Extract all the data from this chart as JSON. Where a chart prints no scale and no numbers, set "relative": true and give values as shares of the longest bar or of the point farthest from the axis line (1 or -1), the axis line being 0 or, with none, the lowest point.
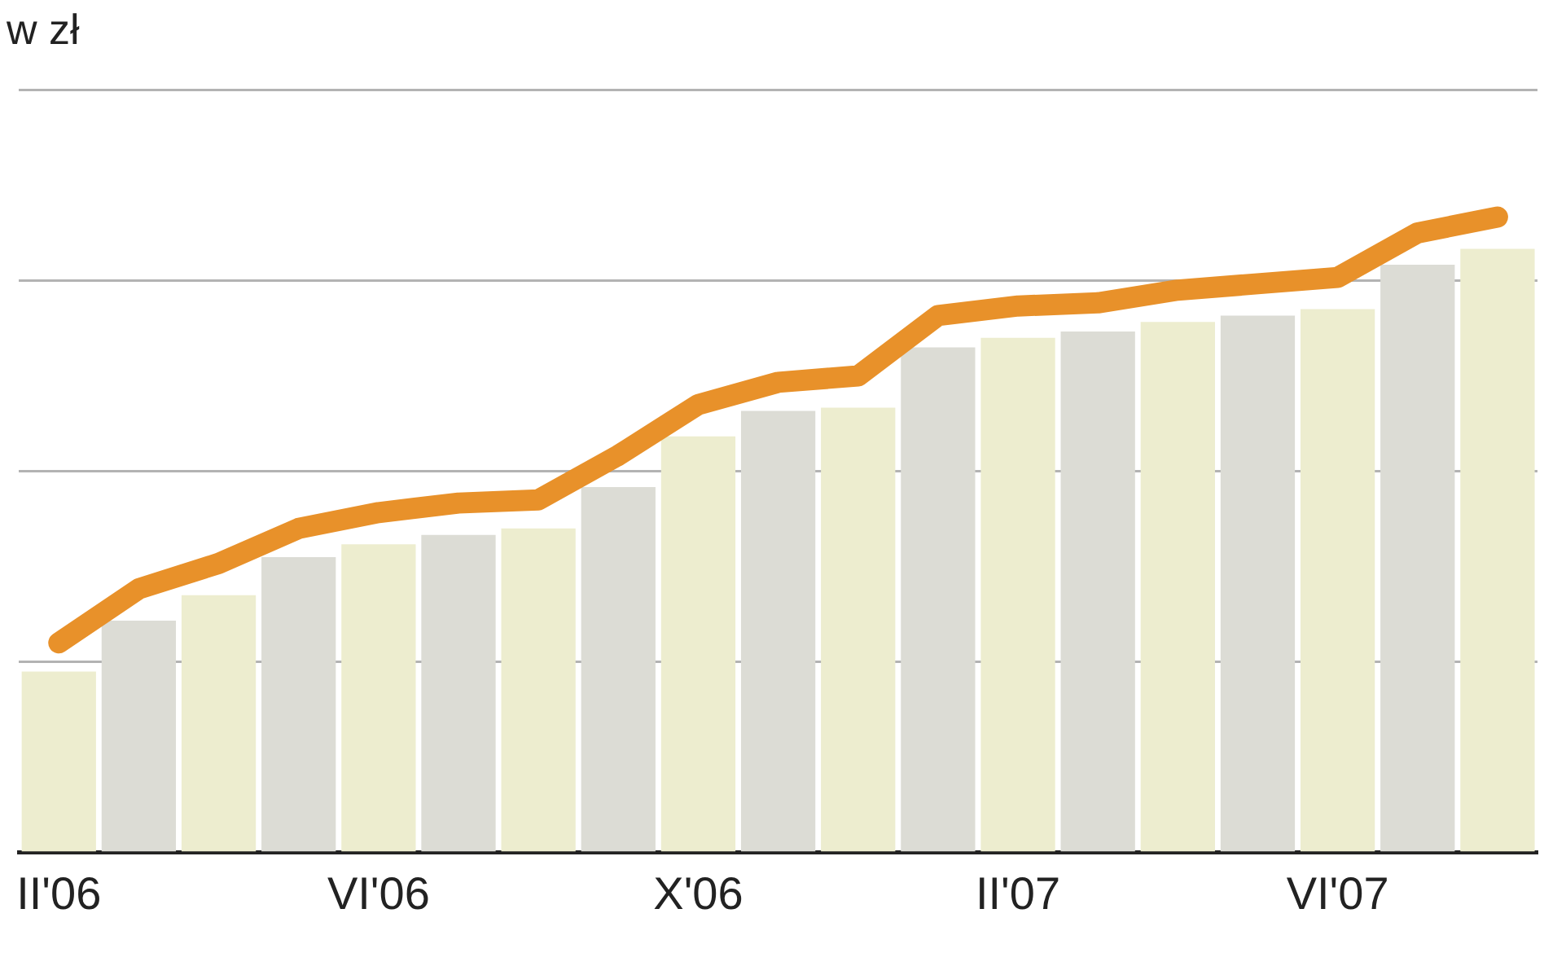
{
  "chart_data": {
    "type": "bar",
    "title": "w zł",
    "categories": [
      "II'06",
      null,
      null,
      null,
      "VI'06",
      null,
      null,
      null,
      "X'06",
      null,
      null,
      null,
      "II'07",
      null,
      null,
      null,
      "VI'07",
      null,
      null
    ],
    "series": [
      {
        "colors": [
          "#ededcf",
          "#dcdcd5",
          "#ededcf",
          "#dcdcd5",
          "#ededcf",
          "#dcdcd5",
          "#ededcf",
          "#dcdcd5",
          "#ededcf",
          "#dcdcd5",
          "#ededcf",
          "#dcdcd5",
          "#ededcf",
          "#dcdcd5",
          "#ededcf",
          "#dcdcd5",
          "#ededcf",
          "#dcdcd5",
          "#ededcf"
        ],
        "values": [
          0.285,
          0.365,
          0.405,
          0.465,
          0.485,
          0.5,
          0.51,
          0.575,
          0.655,
          0.695,
          0.7,
          0.795,
          0.81,
          0.82,
          0.835,
          0.845,
          0.855,
          0.925,
          0.95
        ]
      },
      {
        "type": "line",
        "color": "#e8912a",
        "marker": "none",
        "line_style": "solid",
        "values": [
          0.33,
          0.415,
          0.455,
          0.51,
          0.535,
          0.55,
          0.555,
          0.625,
          0.705,
          0.74,
          0.75,
          0.845,
          0.86,
          0.865,
          0.885,
          0.895,
          0.905,
          0.975,
          1
        ]
      }
    ],
    "relative": true,
    "grid": "y",
    "legend": false,
    "tick_labels": "x"
  }
}
